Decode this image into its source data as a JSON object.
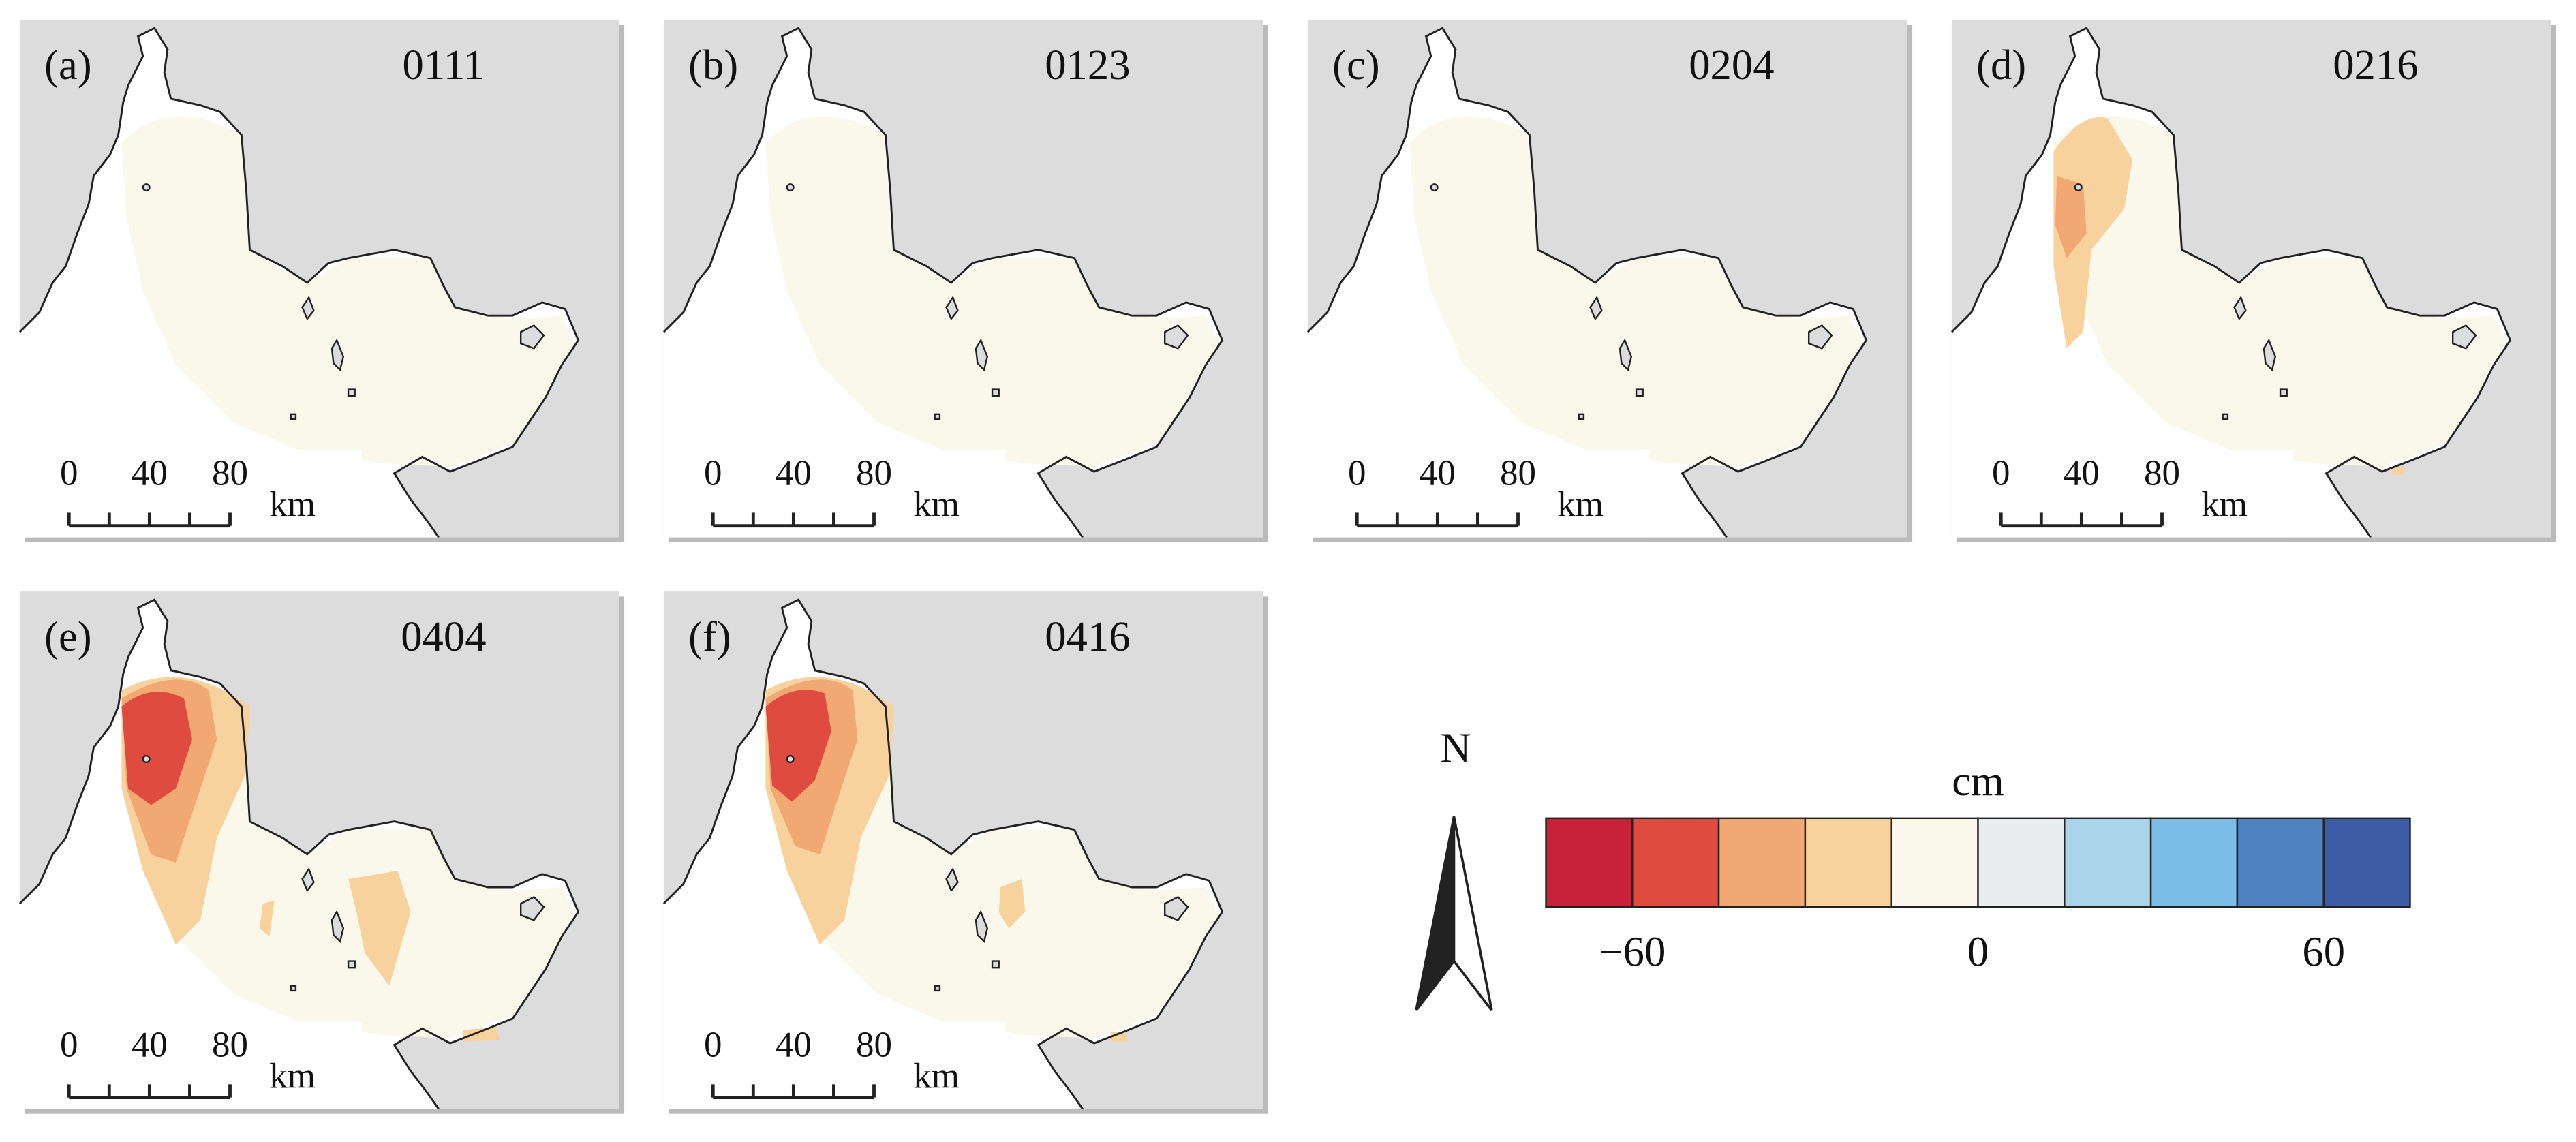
{
  "panels": [
    {
      "label": "(a)",
      "date": "0111"
    },
    {
      "label": "(b)",
      "date": "0123"
    },
    {
      "label": "(c)",
      "date": "0204"
    },
    {
      "label": "(d)",
      "date": "0216"
    },
    {
      "label": "(e)",
      "date": "0404"
    },
    {
      "label": "(f)",
      "date": "0416"
    }
  ],
  "scale_bar": {
    "ticks": [
      0,
      40,
      80
    ],
    "unit": "km"
  },
  "north": "N",
  "colorbar": {
    "unit": "cm",
    "lim": [
      -75,
      75
    ],
    "ticks": [
      {
        "value": -60,
        "label": "−60"
      },
      0,
      60
    ],
    "colors": [
      "#c8223a",
      "#e04b3f",
      "#f2a873",
      "#f8d29d",
      "#faf8ea",
      "#e9edee",
      "#a9d4ea",
      "#7bbde6",
      "#4e82c0",
      "#3e5ba6"
    ]
  }
}
